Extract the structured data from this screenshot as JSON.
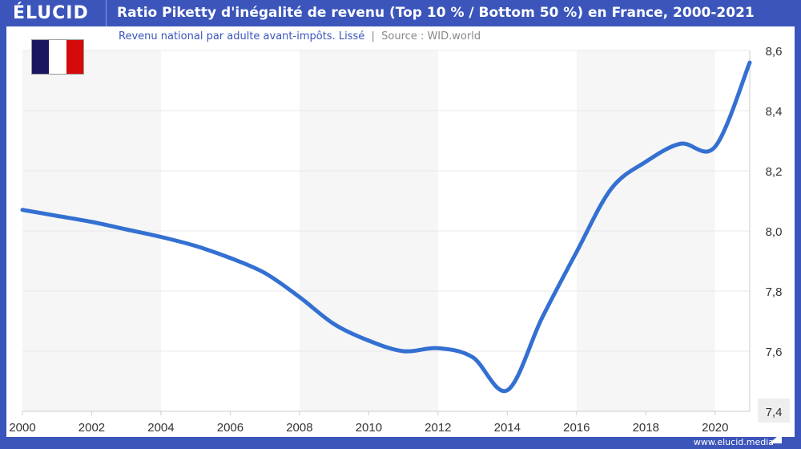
{
  "header": {
    "logo": "ÉLUCID",
    "title": "Ratio Piketty d'inégalité de revenu (Top 10 % / Bottom 50 %) en France, 2000-2021"
  },
  "subtitle": {
    "text": "Revenu national par adulte avant-impôts. Lissé",
    "separator": "|",
    "source": "Source : WID.world"
  },
  "flag": {
    "colors": [
      "#1a1760",
      "#ffffff",
      "#d60a0a"
    ]
  },
  "footer": {
    "site": "www.elucid.media"
  },
  "chart_data": {
    "type": "line",
    "title": "Ratio Piketty d'inégalité de revenu (Top 10 % / Bottom 50 %) en France, 2000-2021",
    "xlim": [
      2000,
      2021
    ],
    "ylim": [
      7.4,
      8.6
    ],
    "x_ticks": [
      "2000",
      "2002",
      "2004",
      "2006",
      "2008",
      "2010",
      "2012",
      "2014",
      "2016",
      "2018",
      "2020"
    ],
    "y_ticks": [
      "7,4",
      "7,6",
      "7,8",
      "8,0",
      "8,2",
      "8,4",
      "8,6"
    ],
    "y_axis_side": "right",
    "grid": true,
    "line_color": "#3470d2",
    "x": [
      2000,
      2001,
      2002,
      2003,
      2004,
      2005,
      2006,
      2007,
      2008,
      2009,
      2010,
      2011,
      2012,
      2013,
      2014,
      2015,
      2016,
      2017,
      2018,
      2019,
      2020,
      2021
    ],
    "y": [
      8.07,
      8.05,
      8.03,
      8.005,
      7.98,
      7.95,
      7.91,
      7.86,
      7.78,
      7.69,
      7.635,
      7.6,
      7.61,
      7.58,
      7.47,
      7.71,
      7.93,
      8.14,
      8.23,
      8.29,
      8.28,
      8.56
    ]
  }
}
